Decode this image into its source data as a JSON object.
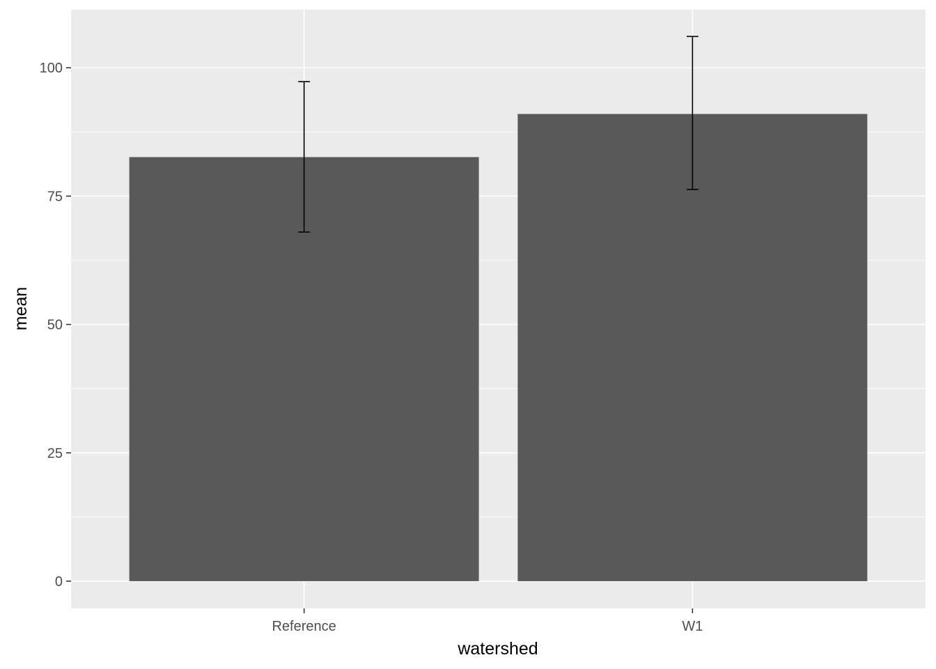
{
  "chart_data": {
    "type": "bar",
    "xlabel": "watershed",
    "ylabel": "mean",
    "categories": [
      "Reference",
      "W1"
    ],
    "values": [
      82.6,
      91.0
    ],
    "error_bars": [
      {
        "lower": 68.0,
        "upper": 97.3
      },
      {
        "lower": 76.3,
        "upper": 106.1
      }
    ],
    "ylim": [
      -5.3,
      111.3
    ],
    "y_ticks": [
      0,
      25,
      50,
      75,
      100
    ],
    "y_tick_labels": [
      "0",
      "25",
      "50",
      "75",
      "100"
    ],
    "grid": true,
    "legend": "none",
    "colors": {
      "bar": "#595959",
      "panel": "#ebebeb",
      "grid": "#ffffff",
      "errorbar": "#000000"
    }
  }
}
